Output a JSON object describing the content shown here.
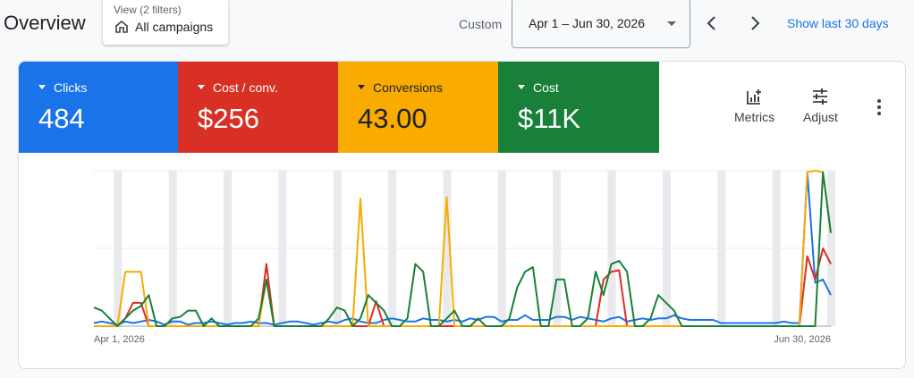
{
  "header": {
    "title": "Overview",
    "view_sub": "View (2 filters)",
    "view_main": "All campaigns",
    "custom_label": "Custom",
    "date_range": "Apr 1 – Jun 30, 2026",
    "show_last": "Show last 30 days"
  },
  "metrics": [
    {
      "label": "Clicks",
      "value": "484",
      "color": "#1a73e8",
      "text": "#ffffff"
    },
    {
      "label": "Cost / conv.",
      "value": "$256",
      "color": "#d93025",
      "text": "#ffffff"
    },
    {
      "label": "Conversions",
      "value": "43.00",
      "color": "#f9ab00",
      "text": "#202124"
    },
    {
      "label": "Cost",
      "value": "$11K",
      "color": "#188038",
      "text": "#ffffff"
    }
  ],
  "tools": {
    "metrics_label": "Metrics",
    "adjust_label": "Adjust"
  },
  "icons": [
    "home-icon",
    "chevron-left-icon",
    "chevron-right-icon",
    "metrics-chart-icon",
    "adjust-sliders-icon",
    "more-vert-icon",
    "dropdown-caret-icon"
  ],
  "chart_data": {
    "type": "line",
    "x_start_label": "Apr 1, 2026",
    "x_end_label": "Jun 30, 2026",
    "grid": true,
    "weekend_bands": true,
    "series": [
      {
        "color": "#1a73e8",
        "values": [
          2,
          3,
          2,
          1,
          3,
          2,
          3,
          4,
          3,
          1,
          3,
          3,
          1,
          2,
          2,
          3,
          2,
          1,
          2,
          2,
          3,
          2,
          2,
          1,
          2,
          3,
          3,
          2,
          1,
          2,
          3,
          2,
          4,
          5,
          3,
          2,
          2,
          4,
          5,
          4,
          3,
          3,
          5,
          4,
          4,
          3,
          4,
          3,
          5,
          4,
          6,
          6,
          3,
          4,
          4,
          7,
          4,
          4,
          4,
          6,
          6,
          4,
          6,
          5,
          4,
          3,
          5,
          6,
          3,
          4,
          5,
          4,
          5,
          5,
          7,
          5,
          4,
          4,
          4,
          4,
          2,
          2,
          2,
          2,
          2,
          2,
          2,
          2,
          3,
          2,
          2,
          99,
          28,
          30,
          20
        ]
      },
      {
        "color": "#d93025",
        "values": [
          0,
          0,
          0,
          0,
          5,
          15,
          15,
          0,
          0,
          0,
          0,
          0,
          0,
          0,
          0,
          0,
          0,
          0,
          0,
          0,
          0,
          0,
          40,
          0,
          0,
          0,
          0,
          0,
          0,
          0,
          0,
          0,
          0,
          0,
          0,
          0,
          16,
          0,
          0,
          0,
          0,
          0,
          0,
          0,
          0,
          0,
          0,
          0,
          0,
          0,
          0,
          0,
          0,
          0,
          0,
          0,
          0,
          0,
          0,
          0,
          0,
          0,
          0,
          0,
          0,
          30,
          35,
          36,
          0,
          0,
          0,
          0,
          0,
          0,
          0,
          0,
          0,
          0,
          0,
          0,
          0,
          0,
          0,
          0,
          0,
          0,
          0,
          0,
          0,
          0,
          0,
          45,
          30,
          50,
          40
        ]
      },
      {
        "color": "#f9ab00",
        "values": [
          0,
          0,
          0,
          0,
          35,
          35,
          35,
          0,
          0,
          0,
          0,
          0,
          0,
          0,
          0,
          0,
          0,
          0,
          0,
          0,
          0,
          0,
          30,
          0,
          0,
          0,
          0,
          0,
          0,
          0,
          0,
          0,
          0,
          0,
          82,
          0,
          0,
          0,
          0,
          0,
          0,
          0,
          0,
          0,
          0,
          83,
          0,
          0,
          0,
          0,
          0,
          0,
          0,
          0,
          0,
          0,
          0,
          0,
          0,
          0,
          0,
          0,
          0,
          0,
          0,
          0,
          0,
          0,
          0,
          0,
          0,
          0,
          0,
          0,
          0,
          0,
          0,
          0,
          0,
          0,
          0,
          0,
          0,
          0,
          0,
          0,
          0,
          0,
          0,
          0,
          0,
          99,
          100,
          99,
          60
        ]
      },
      {
        "color": "#188038",
        "values": [
          12,
          10,
          5,
          0,
          5,
          10,
          13,
          20,
          0,
          0,
          5,
          6,
          10,
          10,
          0,
          5,
          0,
          0,
          0,
          0,
          0,
          5,
          30,
          0,
          0,
          0,
          0,
          0,
          0,
          0,
          5,
          12,
          10,
          0,
          5,
          20,
          15,
          10,
          0,
          0,
          5,
          40,
          35,
          0,
          0,
          5,
          10,
          0,
          0,
          5,
          0,
          0,
          0,
          5,
          25,
          35,
          38,
          0,
          0,
          30,
          30,
          0,
          0,
          5,
          35,
          20,
          40,
          42,
          35,
          0,
          0,
          5,
          20,
          15,
          10,
          0,
          0,
          0,
          0,
          0,
          0,
          0,
          0,
          0,
          0,
          0,
          0,
          0,
          0,
          0,
          0,
          0,
          0,
          99,
          60
        ]
      }
    ]
  }
}
